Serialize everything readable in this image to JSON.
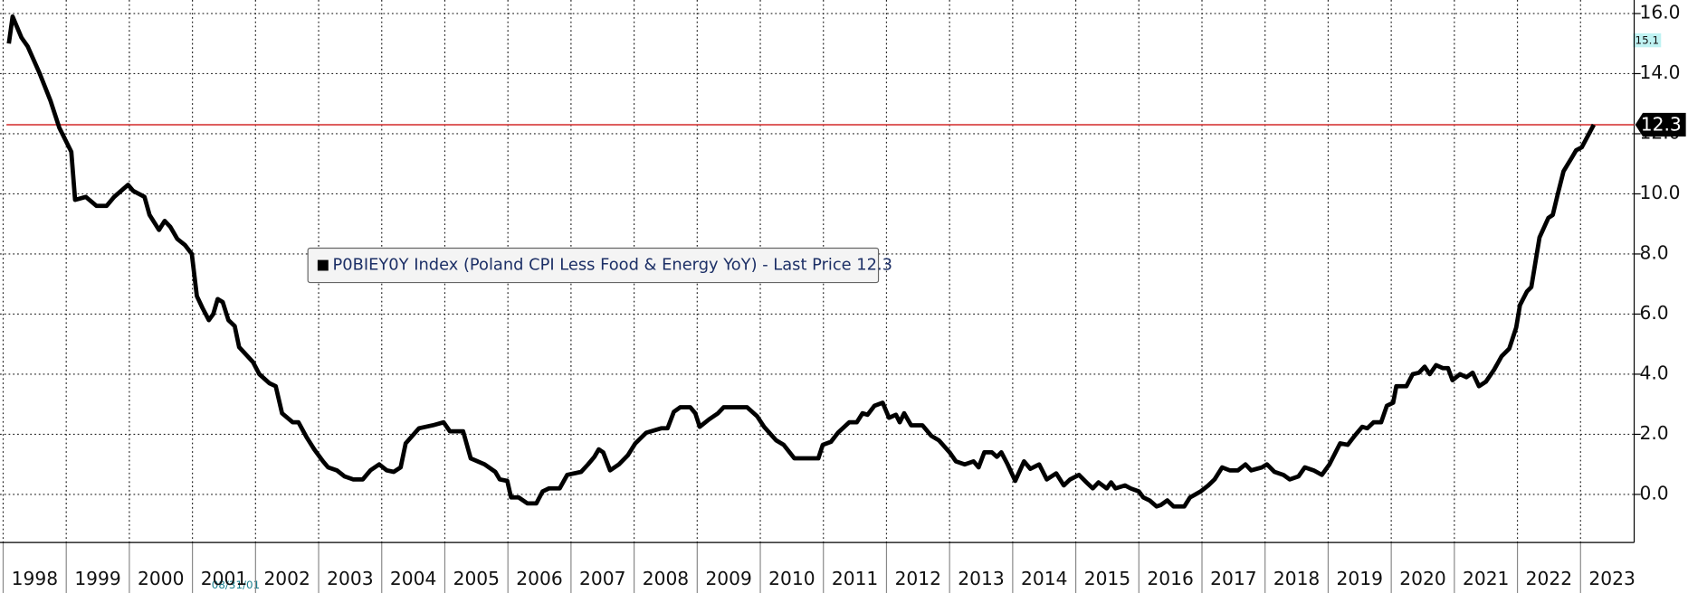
{
  "chart_data": {
    "type": "line",
    "series": [
      {
        "name": "P0BIEY0Y Index (Poland CPI Less Food & Energy YoY) - Last Price 12.3",
        "color": "#000000",
        "values": [
          15.0,
          15.9,
          15.2,
          14.9,
          14.0,
          13.1,
          12.2,
          11.4,
          9.8,
          9.9,
          9.6,
          9.6,
          9.9,
          10.3,
          10.1,
          9.9,
          9.3,
          8.8,
          9.1,
          8.9,
          8.5,
          8.3,
          8.0,
          6.6,
          6.2,
          5.8,
          6.0,
          6.5,
          6.4,
          5.8,
          5.6,
          4.9,
          4.4,
          4.0,
          3.7,
          3.6,
          2.7,
          2.4,
          2.4,
          1.9,
          1.5,
          1.1,
          0.9,
          0.8,
          0.6,
          0.5,
          0.5,
          0.8,
          1.0,
          0.8,
          0.75,
          0.9,
          1.7,
          2.2,
          2.3,
          2.4,
          2.1,
          2.1,
          1.2,
          1.0,
          0.75,
          0.5,
          0.45,
          -0.1,
          -0.1,
          -0.3,
          -0.3,
          0.1,
          0.2,
          0.2,
          0.65,
          0.75,
          1.0,
          1.25,
          1.5,
          1.4,
          0.8,
          1.0,
          1.3,
          1.7,
          2.05,
          2.2,
          2.2,
          2.75,
          2.9,
          2.9,
          2.7,
          2.25,
          2.5,
          2.7,
          2.9,
          2.9,
          2.9,
          2.6,
          2.25,
          1.8,
          1.65,
          1.2,
          1.2,
          1.65,
          1.75,
          2.05,
          2.4,
          2.4,
          2.7,
          2.65,
          2.95,
          3.05,
          2.55,
          2.65,
          2.4,
          2.7,
          2.3,
          2.3,
          1.95,
          1.8,
          1.4,
          1.1,
          1.0,
          1.1,
          0.9,
          1.4,
          1.4,
          1.25,
          1.4,
          1.0,
          0.45,
          1.1,
          0.85,
          1.0,
          0.5,
          0.7,
          0.3,
          0.5,
          0.65,
          0.4,
          0.2,
          0.4,
          0.2,
          0.4,
          0.2,
          0.3,
          0.2,
          0.1,
          -0.1,
          -0.2,
          -0.4,
          -0.35,
          -0.2,
          -0.4,
          -0.4,
          -0.1,
          0.1,
          0.3,
          0.5,
          0.9,
          0.8,
          0.8,
          1.0,
          0.8,
          0.9,
          1.0,
          0.75,
          0.65,
          0.5,
          0.6,
          0.9,
          0.8,
          0.65,
          1.0,
          1.7,
          1.65,
          1.95,
          2.25,
          2.2,
          2.4,
          2.4,
          2.95,
          3.05,
          3.6,
          3.6,
          4.0,
          4.05,
          4.25,
          4.0,
          4.3,
          4.2,
          4.2,
          3.8,
          4.0,
          3.9,
          4.05,
          3.6,
          3.75,
          4.15,
          4.6,
          4.85,
          5.55,
          6.3,
          6.75,
          6.9,
          8.55,
          9.2,
          9.3,
          10.0,
          10.75,
          11.2,
          11.45,
          11.55,
          12.3
        ]
      }
    ],
    "x": [
      1998.09,
      1998.15,
      1998.29,
      1998.39,
      1998.58,
      1998.75,
      1998.89,
      1999.08,
      1999.14,
      1999.31,
      1999.48,
      1999.64,
      1999.76,
      1999.98,
      2000.06,
      2000.24,
      2000.32,
      2000.47,
      2000.56,
      2000.65,
      2000.76,
      2000.88,
      2000.99,
      2001.07,
      2001.16,
      2001.26,
      2001.33,
      2001.4,
      2001.48,
      2001.57,
      2001.67,
      2001.74,
      2001.96,
      2002.06,
      2002.22,
      2002.32,
      2002.42,
      2002.59,
      2002.68,
      2002.81,
      2002.93,
      2003.07,
      2003.15,
      2003.29,
      2003.41,
      2003.55,
      2003.7,
      2003.82,
      2003.96,
      2004.08,
      2004.19,
      2004.3,
      2004.38,
      2004.59,
      2004.81,
      2004.98,
      2005.08,
      2005.29,
      2005.41,
      2005.63,
      2005.8,
      2005.87,
      2005.99,
      2006.05,
      2006.17,
      2006.31,
      2006.45,
      2006.55,
      2006.65,
      2006.82,
      2006.94,
      2007.16,
      2007.27,
      2007.37,
      2007.44,
      2007.51,
      2007.62,
      2007.76,
      2007.9,
      2008.02,
      2008.19,
      2008.43,
      2008.53,
      2008.63,
      2008.73,
      2008.89,
      2008.97,
      2009.04,
      2009.19,
      2009.33,
      2009.42,
      2009.57,
      2009.79,
      2009.95,
      2010.06,
      2010.25,
      2010.37,
      2010.54,
      2010.92,
      2010.99,
      2011.12,
      2011.23,
      2011.41,
      2011.53,
      2011.62,
      2011.7,
      2011.81,
      2011.94,
      2012.04,
      2012.15,
      2012.21,
      2012.28,
      2012.39,
      2012.57,
      2012.71,
      2012.83,
      2013.0,
      2013.1,
      2013.24,
      2013.38,
      2013.46,
      2013.55,
      2013.67,
      2013.75,
      2013.82,
      2013.92,
      2014.04,
      2014.18,
      2014.28,
      2014.42,
      2014.54,
      2014.69,
      2014.81,
      2014.91,
      2015.05,
      2015.17,
      2015.27,
      2015.36,
      2015.49,
      2015.56,
      2015.63,
      2015.78,
      2015.87,
      2016.0,
      2016.07,
      2016.17,
      2016.28,
      2016.35,
      2016.45,
      2016.55,
      2016.72,
      2016.81,
      2016.98,
      2017.1,
      2017.2,
      2017.32,
      2017.44,
      2017.57,
      2017.69,
      2017.78,
      2017.95,
      2018.03,
      2018.15,
      2018.29,
      2018.39,
      2018.53,
      2018.63,
      2018.77,
      2018.9,
      2019.02,
      2019.19,
      2019.31,
      2019.42,
      2019.54,
      2019.62,
      2019.72,
      2019.84,
      2019.93,
      2020.03,
      2020.08,
      2020.24,
      2020.34,
      2020.44,
      2020.53,
      2020.61,
      2020.71,
      2020.82,
      2020.9,
      2020.97,
      2021.09,
      2021.19,
      2021.29,
      2021.39,
      2021.5,
      2021.63,
      2021.75,
      2021.87,
      2021.98,
      2022.04,
      2022.15,
      2022.22,
      2022.35,
      2022.49,
      2022.56,
      2022.64,
      2022.73,
      2022.86,
      2022.93,
      2023.02,
      2023.21
    ],
    "xlim": [
      1997.95,
      2023.85
    ],
    "xticks": [
      1998,
      1999,
      2000,
      2001,
      2002,
      2003,
      2004,
      2005,
      2006,
      2007,
      2008,
      2009,
      2010,
      2011,
      2012,
      2013,
      2014,
      2015,
      2016,
      2017,
      2018,
      2019,
      2020,
      2021,
      2022,
      2023
    ],
    "ylim": [
      -1.6,
      16.45
    ],
    "yticks": [
      {
        "value": 0,
        "label": "0.0"
      },
      {
        "value": 2,
        "label": "2.0"
      },
      {
        "value": 4,
        "label": "4.0"
      },
      {
        "value": 6,
        "label": "6.0"
      },
      {
        "value": 8,
        "label": "8.0"
      },
      {
        "value": 10,
        "label": "10.0"
      },
      {
        "value": 12,
        "label": "12.0"
      },
      {
        "value": 14,
        "label": "14.0"
      },
      {
        "value": 16,
        "label": "16.0"
      }
    ],
    "grid": true,
    "last_price": 12.3,
    "last_price_color": "#d42a2a",
    "annotations": [
      "15.1",
      "08/31/01"
    ]
  }
}
